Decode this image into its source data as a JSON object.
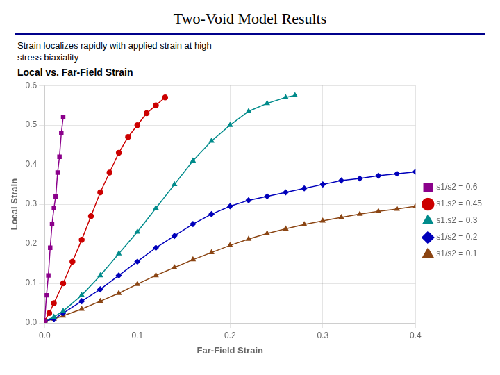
{
  "chart_data": {
    "type": "line",
    "title": "Two-Void Model Results",
    "subtitle": [
      "Strain localizes rapidly with applied strain at high",
      "stress biaxiality"
    ],
    "chart_title": "Local vs. Far-Field Strain",
    "xlabel": "Far-Field Strain",
    "ylabel": "Local Strain",
    "xlim": [
      0.0,
      0.4
    ],
    "ylim": [
      0.0,
      0.6
    ],
    "xticks": [
      {
        "value": 0.0,
        "label": "0.0"
      },
      0.1,
      0.2,
      0.3,
      0.4
    ],
    "yticks": [
      {
        "value": 0.0,
        "label": "0.0"
      },
      0.1,
      0.2,
      0.3,
      0.4,
      0.5,
      0.6
    ],
    "grid": true,
    "legend": "right",
    "series": [
      {
        "name": "s1/s2 = 0.6",
        "color": "#8B008B",
        "marker": "square",
        "x": [
          0.0,
          0.002,
          0.004,
          0.006,
          0.008,
          0.01,
          0.012,
          0.014,
          0.016,
          0.018,
          0.02
        ],
        "values": [
          0.005,
          0.07,
          0.12,
          0.19,
          0.25,
          0.29,
          0.32,
          0.38,
          0.42,
          0.48,
          0.52
        ]
      },
      {
        "name": "s1.s2 = 0.45",
        "color": "#cc0000",
        "marker": "circle",
        "x": [
          0.0,
          0.005,
          0.01,
          0.02,
          0.03,
          0.04,
          0.05,
          0.06,
          0.07,
          0.08,
          0.09,
          0.1,
          0.11,
          0.12,
          0.13
        ],
        "values": [
          0.005,
          0.025,
          0.05,
          0.1,
          0.155,
          0.21,
          0.27,
          0.33,
          0.38,
          0.43,
          0.47,
          0.5,
          0.53,
          0.55,
          0.57
        ]
      },
      {
        "name": "s1.s2 = 0.3",
        "color": "#008B8B",
        "marker": "triangle",
        "x": [
          0.0,
          0.01,
          0.02,
          0.04,
          0.06,
          0.08,
          0.1,
          0.12,
          0.14,
          0.16,
          0.18,
          0.2,
          0.22,
          0.24,
          0.26,
          0.27
        ],
        "values": [
          0.005,
          0.015,
          0.03,
          0.07,
          0.12,
          0.175,
          0.23,
          0.29,
          0.35,
          0.41,
          0.46,
          0.5,
          0.535,
          0.555,
          0.57,
          0.575
        ]
      },
      {
        "name": "s1/s2 = 0.2",
        "color": "#0000bb",
        "marker": "diamond",
        "x": [
          0.0,
          0.01,
          0.02,
          0.04,
          0.06,
          0.08,
          0.1,
          0.12,
          0.14,
          0.16,
          0.18,
          0.2,
          0.22,
          0.24,
          0.26,
          0.28,
          0.3,
          0.32,
          0.34,
          0.36,
          0.38,
          0.4
        ],
        "values": [
          0.005,
          0.01,
          0.025,
          0.055,
          0.085,
          0.12,
          0.155,
          0.19,
          0.22,
          0.25,
          0.275,
          0.295,
          0.31,
          0.32,
          0.33,
          0.34,
          0.35,
          0.36,
          0.365,
          0.372,
          0.377,
          0.382
        ]
      },
      {
        "name": "s1/s2 = 0.1",
        "color": "#8B4513",
        "marker": "triangle",
        "x": [
          0.0,
          0.01,
          0.02,
          0.04,
          0.06,
          0.08,
          0.1,
          0.12,
          0.14,
          0.16,
          0.18,
          0.2,
          0.22,
          0.24,
          0.26,
          0.28,
          0.3,
          0.32,
          0.34,
          0.36,
          0.38,
          0.4
        ],
        "values": [
          0.005,
          0.01,
          0.018,
          0.035,
          0.055,
          0.075,
          0.098,
          0.12,
          0.14,
          0.16,
          0.178,
          0.196,
          0.212,
          0.226,
          0.238,
          0.249,
          0.258,
          0.267,
          0.275,
          0.282,
          0.288,
          0.295
        ]
      }
    ]
  }
}
